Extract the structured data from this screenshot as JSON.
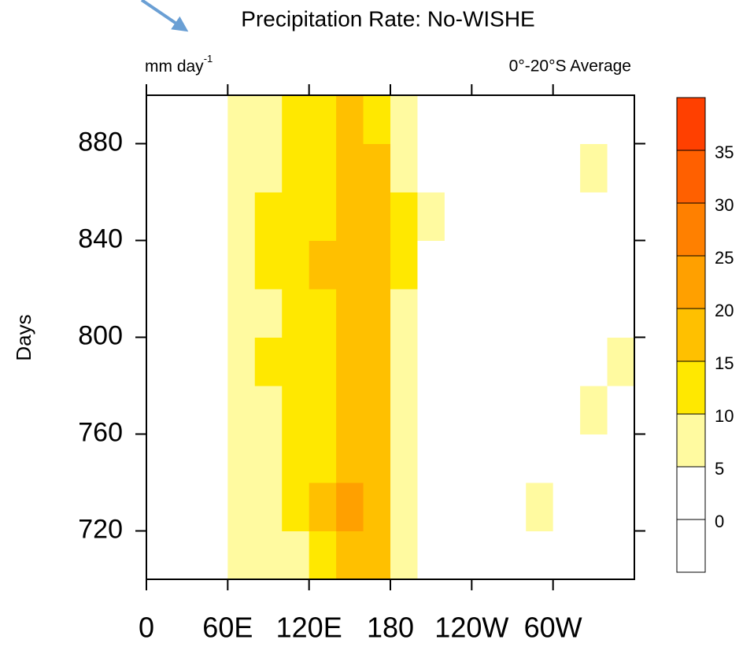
{
  "chart_data": {
    "type": "heatmap",
    "title": "Precipitation Rate: No-WISHE",
    "units": {
      "text": "mm day",
      "superscript": "-1"
    },
    "region": "0°-20°S Average",
    "ylabel": "Days",
    "x": [
      10,
      30,
      50,
      70,
      90,
      110,
      130,
      150,
      170,
      190,
      210,
      230,
      250,
      270,
      290,
      310,
      330,
      350
    ],
    "y": [
      710,
      730,
      750,
      770,
      790,
      810,
      830,
      850,
      870,
      890
    ],
    "z": [
      [
        3,
        2,
        2,
        6,
        7,
        9,
        14,
        18,
        16,
        9,
        3,
        2,
        3,
        2,
        3,
        4,
        3,
        3
      ],
      [
        2,
        3,
        3,
        7,
        8,
        10,
        15,
        20,
        17,
        8,
        4,
        2,
        3,
        3,
        5,
        4,
        4,
        2
      ],
      [
        3,
        2,
        3,
        7,
        9,
        10,
        13,
        17,
        16,
        7,
        3,
        2,
        3,
        2,
        4,
        3,
        3,
        2
      ],
      [
        2,
        3,
        3,
        8,
        9,
        11,
        14,
        16,
        15,
        6,
        3,
        2,
        3,
        4,
        4,
        3,
        5,
        3
      ],
      [
        3,
        3,
        4,
        8,
        10,
        12,
        14,
        17,
        16,
        7,
        3,
        2,
        2,
        3,
        3,
        4,
        4,
        5
      ],
      [
        2,
        2,
        3,
        7,
        9,
        11,
        13,
        16,
        18,
        9,
        3,
        2,
        3,
        2,
        3,
        4,
        3,
        3
      ],
      [
        2,
        3,
        3,
        7,
        10,
        12,
        15,
        16,
        19,
        12,
        4,
        2,
        3,
        3,
        4,
        3,
        4,
        3
      ],
      [
        3,
        2,
        3,
        8,
        10,
        12,
        14,
        17,
        15,
        12,
        6,
        2,
        2,
        3,
        4,
        4,
        4,
        3
      ],
      [
        2,
        3,
        3,
        7,
        9,
        11,
        14,
        18,
        16,
        8,
        3,
        2,
        3,
        4,
        3,
        3,
        5,
        3
      ],
      [
        3,
        2,
        2,
        7,
        9,
        10,
        13,
        15,
        14,
        7,
        2,
        2,
        3,
        3,
        3,
        3,
        4,
        4
      ]
    ],
    "xlim": [
      0,
      360
    ],
    "xticks": [
      0,
      {
        "value": 60,
        "label": "60E"
      },
      {
        "value": 120,
        "label": "120E"
      },
      180,
      {
        "value": 240,
        "label": "120W"
      },
      {
        "value": 300,
        "label": "60W"
      }
    ],
    "ylim": [
      700,
      900
    ],
    "yticks": [
      720,
      760,
      800,
      840,
      880
    ],
    "levels": [
      0,
      5,
      10,
      15,
      20,
      25,
      30,
      35
    ],
    "colors": [
      "#ffffff",
      "#ffffff",
      "#fffaa0",
      "#ffe800",
      "#ffc000",
      "#ffa000",
      "#ff8000",
      "#ff6000",
      "#ff4000"
    ]
  }
}
